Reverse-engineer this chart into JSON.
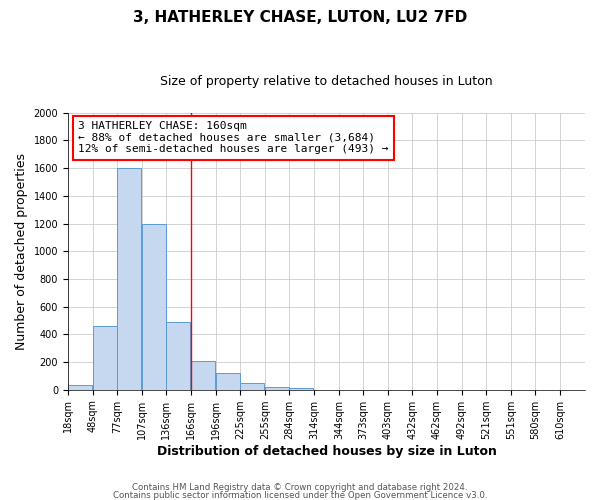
{
  "title": "3, HATHERLEY CHASE, LUTON, LU2 7FD",
  "subtitle": "Size of property relative to detached houses in Luton",
  "xlabel": "Distribution of detached houses by size in Luton",
  "ylabel": "Number of detached properties",
  "bar_left_edges": [
    18,
    48,
    77,
    107,
    136,
    166,
    196,
    225,
    255,
    284,
    314,
    344,
    373,
    403,
    432,
    462,
    492,
    521,
    551,
    580
  ],
  "bar_widths": [
    29,
    29,
    29,
    29,
    29,
    29,
    29,
    29,
    29,
    29,
    29,
    29,
    29,
    29,
    29,
    29,
    29,
    29,
    29,
    29
  ],
  "bar_heights": [
    35,
    460,
    1600,
    1200,
    490,
    210,
    120,
    45,
    20,
    10,
    0,
    0,
    0,
    0,
    0,
    0,
    0,
    0,
    0,
    0
  ],
  "bar_color": "#c5d8f0",
  "bar_edgecolor": "#5b9bd5",
  "xlim": [
    18,
    640
  ],
  "ylim": [
    0,
    2000
  ],
  "yticks": [
    0,
    200,
    400,
    600,
    800,
    1000,
    1200,
    1400,
    1600,
    1800,
    2000
  ],
  "xtick_labels": [
    "18sqm",
    "48sqm",
    "77sqm",
    "107sqm",
    "136sqm",
    "166sqm",
    "196sqm",
    "225sqm",
    "255sqm",
    "284sqm",
    "314sqm",
    "344sqm",
    "373sqm",
    "403sqm",
    "432sqm",
    "462sqm",
    "492sqm",
    "521sqm",
    "551sqm",
    "580sqm",
    "610sqm"
  ],
  "xtick_positions": [
    18,
    48,
    77,
    107,
    136,
    166,
    196,
    225,
    255,
    284,
    314,
    344,
    373,
    403,
    432,
    462,
    492,
    521,
    551,
    580,
    610
  ],
  "red_line_x": 166,
  "annotation_title": "3 HATHERLEY CHASE: 160sqm",
  "annotation_line1": "← 88% of detached houses are smaller (3,684)",
  "annotation_line2": "12% of semi-detached houses are larger (493) →",
  "footer1": "Contains HM Land Registry data © Crown copyright and database right 2024.",
  "footer2": "Contains public sector information licensed under the Open Government Licence v3.0.",
  "bg_color": "#ffffff",
  "grid_color": "#cccccc",
  "title_fontsize": 11,
  "subtitle_fontsize": 9,
  "axis_label_fontsize": 9,
  "tick_fontsize": 7,
  "annotation_fontsize": 8
}
